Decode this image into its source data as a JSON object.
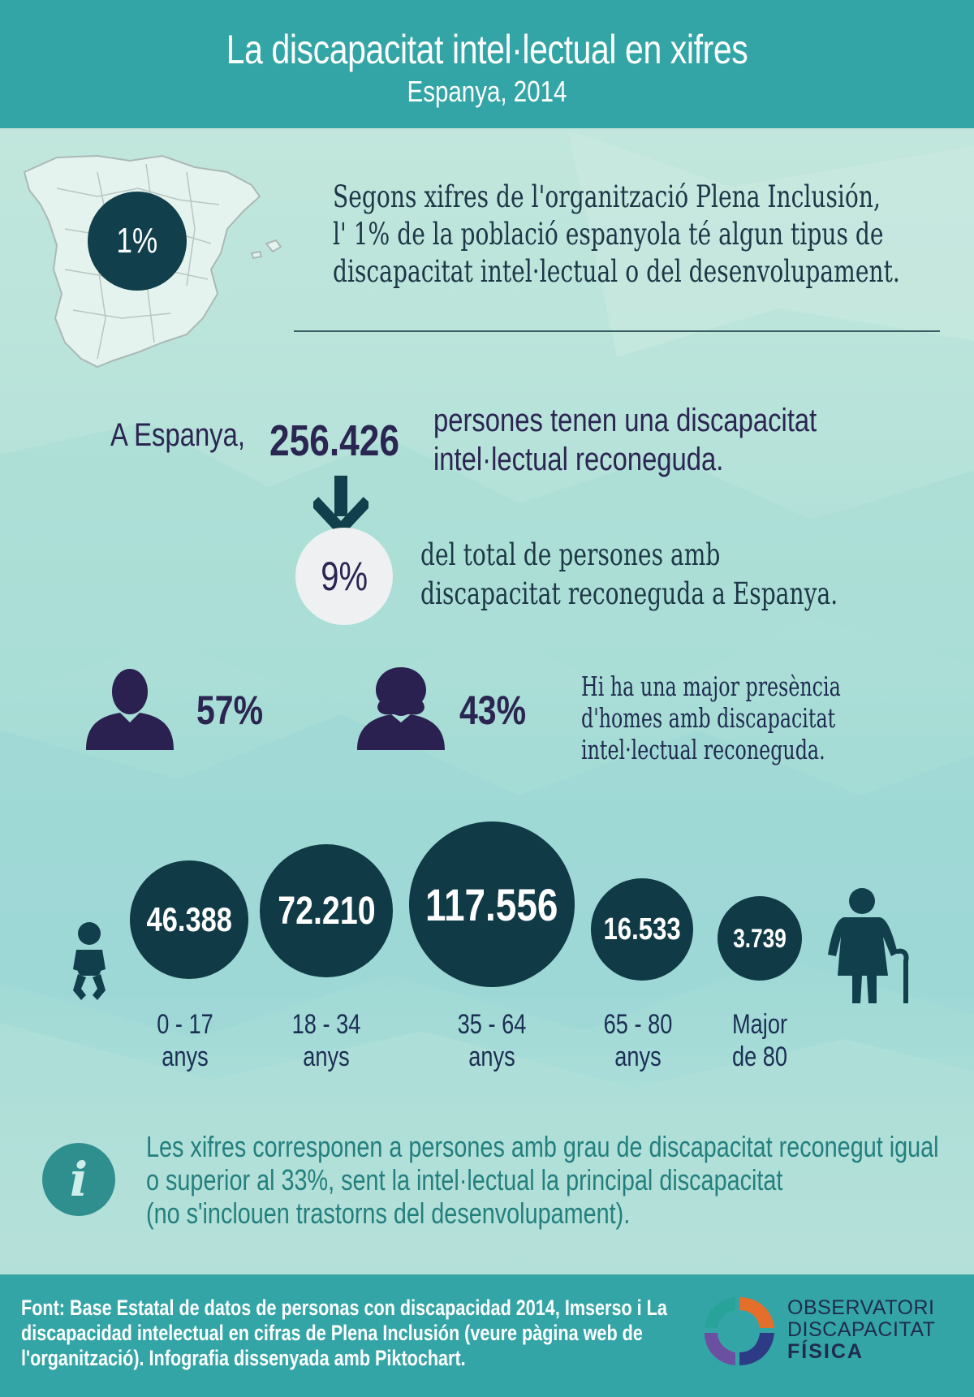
{
  "header": {
    "title": "La discapacitat intel·lectual en xifres",
    "subtitle": "Espanya, 2014"
  },
  "intro": {
    "percent": "1%",
    "lines": [
      "Segons xifres de l'organització Plena Inclusión,",
      "l' 1% de la població espanyola té algun tipus de",
      "discapacitat intel·lectual o del desenvolupament."
    ]
  },
  "recognized": {
    "prefix": "A Espanya,",
    "number": "256.426",
    "lines": [
      "persones tenen una discapacitat",
      "intel·lectual reconeguda."
    ]
  },
  "share": {
    "percent": "9%",
    "lines": [
      "del total de persones amb",
      "discapacitat reconeguda a Espanya."
    ]
  },
  "gender": {
    "men": "57%",
    "women": "43%",
    "lines": [
      "Hi ha una major presència",
      "d'homes amb discapacitat",
      "intel·lectual reconeguda."
    ]
  },
  "ages": [
    {
      "value": "46.388",
      "label1": "0 - 17",
      "label2": "anys"
    },
    {
      "value": "72.210",
      "label1": "18 - 34",
      "label2": "anys"
    },
    {
      "value": "117.556",
      "label1": "35 - 64",
      "label2": "anys"
    },
    {
      "value": "16.533",
      "label1": "65 - 80",
      "label2": "anys"
    },
    {
      "value": "3.739",
      "label1": "Major",
      "label2": "de 80"
    }
  ],
  "note": {
    "icon": "i",
    "lines": [
      "Les xifres corresponen a persones amb grau de discapacitat reconegut igual",
      "o superior al 33%, sent la intel·lectual la principal discapacitat",
      "(no s'inclouen trastorns del desenvolupament)."
    ]
  },
  "footer": {
    "source_lines": [
      "Font: Base Estatal de datos de personas con discapacidad 2014, Imserso i La",
      "discapacidad intelectual en cifras de Plena Inclusión (veure pàgina web de",
      "l'organització). Infografia dissenyada amb Piktochart."
    ],
    "logo_lines": [
      "OBSERVATORI",
      "DISCAPACITAT",
      "FÍSICA"
    ]
  },
  "colors": {
    "header": "#34a5a6",
    "dark_circle": "#0f3a46",
    "navy_text": "#2a2551",
    "note_text": "#237f7e"
  }
}
